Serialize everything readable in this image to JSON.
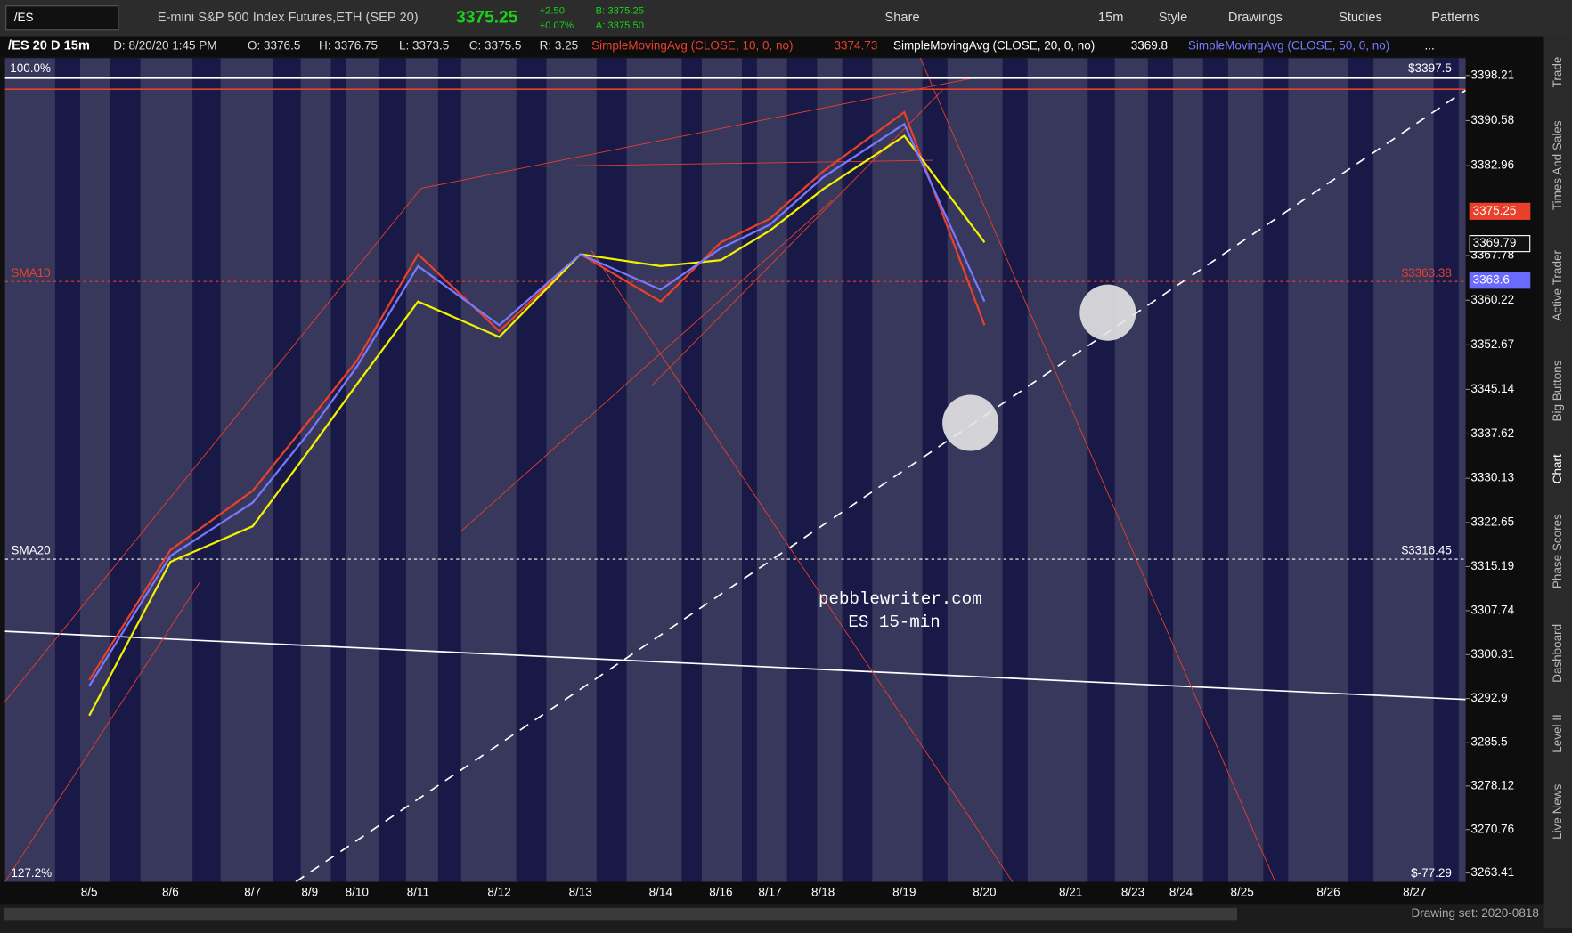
{
  "toolbar": {
    "symbol": "/ES",
    "description": "E-mini S&P 500 Index Futures,ETH (SEP 20)",
    "last": "3375.25",
    "change": "+2.50",
    "change_pct": "+0.07%",
    "bid": "B: 3375.25",
    "ask": "A: 3375.50",
    "buttons": [
      "Share",
      "15m",
      "Style",
      "Drawings",
      "Studies",
      "Patterns"
    ]
  },
  "header": {
    "title": "/ES 20 D 15m",
    "date": "D: 8/20/20 1:45 PM",
    "open": "O: 3376.5",
    "high": "H: 3376.75",
    "low": "L: 3373.5",
    "close": "C: 3375.5",
    "range": "R: 3.25",
    "study_values": [
      "3374.73",
      "3369.8",
      "..."
    ]
  },
  "chart_data": {
    "type": "line",
    "categories": [
      "8/5",
      "8/6",
      "8/7",
      "8/9",
      "8/10",
      "8/11",
      "8/12",
      "8/13",
      "8/14",
      "8/16",
      "8/17",
      "8/18",
      "8/19",
      "8/20",
      "8/21",
      "8/23",
      "8/24",
      "8/25",
      "8/26",
      "8/27"
    ],
    "series": [
      {
        "name": "SimpleMovingAvg (CLOSE, 10, 0, no)",
        "color": "#e8402a",
        "values": [
          3296,
          3318,
          3328,
          3340,
          3350,
          3368,
          3355,
          3368,
          3360,
          3370,
          3374,
          3382,
          3392,
          3356,
          null,
          null,
          null,
          null,
          null,
          null
        ]
      },
      {
        "name": "SimpleMovingAvg (CLOSE, 20, 0, no)",
        "color": "#f2f200",
        "values": [
          3290,
          3316,
          3322,
          3335,
          3346,
          3360,
          3354,
          3368,
          3366,
          3367,
          3372,
          3379,
          3388,
          3370,
          null,
          null,
          null,
          null,
          null,
          null
        ]
      },
      {
        "name": "SimpleMovingAvg (CLOSE, 50, 0, no)",
        "color": "#7878ff",
        "values": [
          3295,
          3317,
          3326,
          3338,
          3349,
          3366,
          3356,
          3368,
          3362,
          3369,
          3373,
          3381,
          3390,
          3360,
          null,
          null,
          null,
          null,
          null,
          null
        ]
      }
    ],
    "ylim": [
      3261.9,
      3404.7
    ],
    "yticks": [
      3398.21,
      3390.58,
      3382.96,
      3367.78,
      3360.22,
      3352.67,
      3345.14,
      3337.62,
      3330.13,
      3322.65,
      3315.19,
      3307.74,
      3300.31,
      3292.9,
      3285.5,
      3278.12,
      3270.76,
      3263.41
    ],
    "levels": [
      {
        "name": "SMA10",
        "color": "#e8402a",
        "value": 3363.38,
        "label": "$3363.38"
      },
      {
        "name": "SMA20",
        "color": "#ffffff",
        "value": 3316.45,
        "label": "$3316.45"
      }
    ],
    "markers": [
      {
        "value": 3375.25,
        "color": "#e8402a"
      },
      {
        "value": 3369.79,
        "color": "#ffffff"
      },
      {
        "value": 3363.6,
        "color": "#6a6aff"
      }
    ],
    "annotations": {
      "top_level": "$3397.5",
      "fib_top": "100.0%",
      "fib_bottom": "127.2%",
      "fib_bottom_price": "$-77.29",
      "watermark": "pebblewriter.com",
      "watermark_sub": "ES 15-min"
    }
  },
  "sidebar": {
    "tabs": [
      "Trade",
      "Times And Sales",
      "Active Trader",
      "Big Buttons",
      "Chart",
      "Phase Scores",
      "Dashboard",
      "Level II",
      "Live News"
    ]
  },
  "footer": {
    "drawing_set": "Drawing set: 2020-0818"
  }
}
